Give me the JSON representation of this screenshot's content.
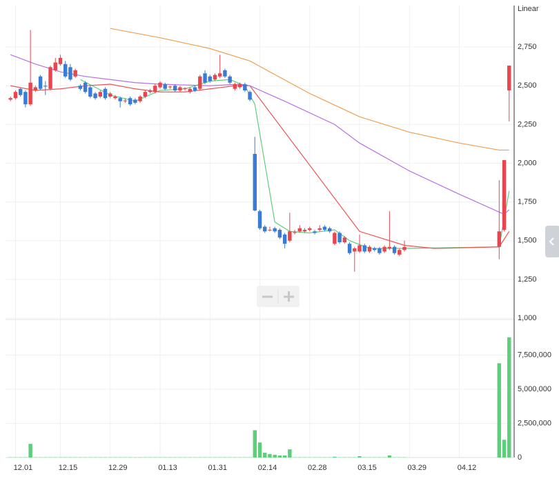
{
  "chart_data": {
    "type": "candlestick",
    "scale_label": "Linear",
    "up_color": "#e8454f",
    "down_color": "#3a7bd5",
    "xlim": [
      -1,
      101
    ],
    "xticks": [
      {
        "value": 1,
        "label": "12.01"
      },
      {
        "value": 10,
        "label": "12.15"
      },
      {
        "value": 20,
        "label": "12.29"
      },
      {
        "value": 30,
        "label": "01.13"
      },
      {
        "value": 40,
        "label": "01.31"
      },
      {
        "value": 50,
        "label": "02.14"
      },
      {
        "value": 60,
        "label": "02.28"
      },
      {
        "value": 70,
        "label": "03.15"
      },
      {
        "value": 80,
        "label": "03.29"
      },
      {
        "value": 90,
        "label": "04.12"
      }
    ],
    "ylim": [
      1000,
      3000
    ],
    "yticks": [
      {
        "value": 1000,
        "label": "1,000"
      },
      {
        "value": 1250,
        "label": "1,250"
      },
      {
        "value": 1500,
        "label": "1,500"
      },
      {
        "value": 1750,
        "label": "1,750"
      },
      {
        "value": 2000,
        "label": "2,000"
      },
      {
        "value": 2250,
        "label": "2,250"
      },
      {
        "value": 2500,
        "label": "2,500"
      },
      {
        "value": 2750,
        "label": "2,750"
      }
    ],
    "open": [
      2410,
      2420,
      2480,
      2460,
      2380,
      2470,
      2560,
      2500,
      2480,
      2600,
      2640,
      2640,
      2620,
      2560,
      2500,
      2520,
      2490,
      2450,
      2430,
      2480,
      2430,
      2420,
      2420,
      2400,
      2420,
      2410,
      2400,
      2430,
      2460,
      2460,
      2490,
      2510,
      2490,
      2500,
      2470,
      2480,
      2460,
      2490,
      2480,
      2580,
      2560,
      2540,
      2560,
      2600,
      2560,
      2480,
      2490,
      2510,
      2460,
      2060,
      1690,
      1590,
      1570,
      1580,
      1570,
      1540,
      1500,
      1550,
      1560,
      1560,
      1570,
      1560,
      1570,
      1590,
      1580,
      1480,
      1550,
      1490,
      1480,
      1430,
      1430,
      1470,
      1430,
      1450,
      1450,
      1430,
      1450,
      1460,
      1410,
      1440,
      null,
      null,
      null,
      null,
      null,
      null,
      null,
      null,
      null,
      null,
      null,
      null,
      null,
      null,
      null,
      null,
      null,
      null,
      1460,
      1570,
      2470
    ],
    "high": [
      2430,
      2470,
      2490,
      2470,
      2860,
      2500,
      2570,
      2530,
      2630,
      2680,
      2700,
      2660,
      2640,
      2610,
      2510,
      2530,
      2500,
      2460,
      2470,
      2490,
      2460,
      2440,
      2430,
      2420,
      2430,
      2420,
      2440,
      2470,
      2480,
      2510,
      2530,
      2520,
      2500,
      2510,
      2500,
      2490,
      2490,
      2500,
      2570,
      2600,
      2570,
      2580,
      2700,
      2610,
      2570,
      2520,
      2520,
      2520,
      2470,
      2170,
      1700,
      1600,
      1590,
      1590,
      1580,
      1550,
      1680,
      1570,
      1600,
      1580,
      1590,
      1570,
      1600,
      1600,
      1590,
      1560,
      1560,
      1530,
      1490,
      1460,
      1540,
      1480,
      1470,
      1460,
      1460,
      1470,
      1690,
      1470,
      1450,
      1500,
      null,
      null,
      null,
      null,
      null,
      null,
      null,
      null,
      null,
      null,
      null,
      null,
      null,
      null,
      null,
      null,
      null,
      null,
      1890,
      2020,
      2630
    ],
    "low": [
      2400,
      2410,
      2430,
      2360,
      2370,
      2460,
      2470,
      2440,
      2470,
      2590,
      2630,
      2550,
      2530,
      2550,
      2470,
      2450,
      2420,
      2410,
      2420,
      2410,
      2420,
      2410,
      2360,
      2390,
      2370,
      2380,
      2390,
      2420,
      2450,
      2450,
      2480,
      2470,
      2480,
      2460,
      2460,
      2470,
      2450,
      2460,
      2470,
      2510,
      2520,
      2530,
      2550,
      2550,
      2510,
      2470,
      2480,
      2460,
      2400,
      1690,
      1570,
      1550,
      1560,
      1550,
      1510,
      1450,
      1490,
      1540,
      1550,
      1550,
      1560,
      1540,
      1560,
      1560,
      1550,
      1470,
      1480,
      1480,
      1410,
      1300,
      1420,
      1420,
      1420,
      1430,
      1410,
      1420,
      1440,
      1410,
      1400,
      1430,
      null,
      null,
      null,
      null,
      null,
      null,
      null,
      null,
      null,
      null,
      null,
      null,
      null,
      null,
      null,
      null,
      null,
      null,
      1380,
      1560,
      2270
    ],
    "close": [
      2420,
      2460,
      2440,
      2380,
      2520,
      2490,
      2480,
      2495,
      2620,
      2650,
      2680,
      2560,
      2540,
      2600,
      2480,
      2460,
      2430,
      2420,
      2460,
      2420,
      2450,
      2430,
      2400,
      2405,
      2380,
      2390,
      2430,
      2460,
      2470,
      2500,
      2520,
      2480,
      2495,
      2470,
      2490,
      2485,
      2480,
      2470,
      2560,
      2520,
      2530,
      2570,
      2580,
      2560,
      2520,
      2510,
      2510,
      2470,
      2410,
      1695,
      1580,
      1560,
      1570,
      1560,
      1520,
      1480,
      1560,
      1555,
      1580,
      1570,
      1580,
      1550,
      1580,
      1570,
      1560,
      1550,
      1490,
      1520,
      1420,
      1450,
      1470,
      1430,
      1460,
      1440,
      1420,
      1460,
      1460,
      1420,
      1440,
      1460,
      null,
      null,
      null,
      null,
      null,
      null,
      null,
      null,
      null,
      null,
      null,
      null,
      null,
      null,
      null,
      null,
      null,
      null,
      1560,
      2020,
      2630
    ],
    "moving_averages": [
      {
        "color": "#5ccf7a",
        "x": [
          14,
          20,
          25,
          30,
          35,
          40,
          44,
          47,
          49,
          51,
          53,
          56,
          60,
          65,
          68,
          72,
          77,
          79,
          98,
          100
        ],
        "values": [
          2540,
          2440,
          2400,
          2470,
          2480,
          2530,
          2540,
          2500,
          2380,
          2000,
          1620,
          1560,
          1550,
          1570,
          1500,
          1450,
          1450,
          1450,
          1460,
          1820
        ]
      },
      {
        "color": "#ef5350",
        "x": [
          0,
          5,
          10,
          15,
          20,
          25,
          30,
          35,
          40,
          45,
          48,
          70,
          79,
          85,
          98,
          100
        ],
        "values": [
          2500,
          2470,
          2480,
          2500,
          2510,
          2480,
          2460,
          2460,
          2480,
          2500,
          2500,
          1560,
          1470,
          1450,
          1460,
          1560
        ]
      },
      {
        "color": "#b76fe6",
        "x": [
          0,
          5,
          10,
          15,
          20,
          25,
          30,
          40,
          46,
          48,
          55,
          65,
          70,
          80,
          90,
          99,
          100
        ],
        "values": [
          2700,
          2640,
          2590,
          2560,
          2540,
          2520,
          2510,
          2500,
          2510,
          2500,
          2400,
          2250,
          2130,
          1950,
          1800,
          1670,
          1700
        ]
      },
      {
        "color": "#f0a050",
        "x": [
          20,
          30,
          40,
          48,
          60,
          70,
          80,
          90,
          98,
          100
        ],
        "values": [
          2870,
          2810,
          2740,
          2660,
          2450,
          2300,
          2200,
          2130,
          2085,
          2085
        ]
      }
    ],
    "volume": {
      "color": "#5ccf7a",
      "ylim": [
        0,
        10000000
      ],
      "yticks": [
        0,
        {
          "value": 2500000,
          "label": "2,500,000"
        },
        {
          "value": 5000000,
          "label": "5,000,000"
        },
        {
          "value": 7500000,
          "label": "7,500,000"
        }
      ],
      "values": [
        20000,
        20000,
        20000,
        20000,
        1000000,
        20000,
        20000,
        20000,
        20000,
        20000,
        20000,
        20000,
        20000,
        20000,
        20000,
        20000,
        20000,
        20000,
        20000,
        20000,
        20000,
        20000,
        20000,
        20000,
        20000,
        20000,
        20000,
        20000,
        20000,
        20000,
        20000,
        20000,
        20000,
        20000,
        20000,
        20000,
        20000,
        20000,
        20000,
        20000,
        20000,
        20000,
        20000,
        20000,
        20000,
        20000,
        20000,
        20000,
        20000,
        2000000,
        1100000,
        350000,
        250000,
        200000,
        150000,
        150000,
        600000,
        20000,
        20000,
        20000,
        20000,
        20000,
        20000,
        20000,
        20000,
        60000,
        20000,
        20000,
        20000,
        20000,
        100000,
        20000,
        20000,
        20000,
        20000,
        20000,
        150000,
        20000,
        20000,
        20000,
        null,
        null,
        null,
        null,
        null,
        null,
        null,
        null,
        null,
        null,
        null,
        null,
        null,
        null,
        null,
        null,
        null,
        null,
        6900000,
        1300000,
        8800000
      ]
    }
  }
}
